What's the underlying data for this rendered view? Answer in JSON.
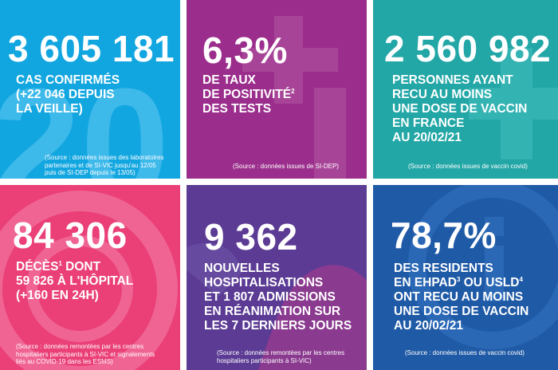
{
  "tiles": [
    {
      "number": "3 605 181",
      "lines": [
        "CAS CONFIRMÉS",
        "(+22 046 DEPUIS",
        "LA VEILLE)"
      ],
      "source": [
        "(Source : données issues des laboratoires",
        "partenaires et de SI-VIC jusqu'au 12/05",
        "puis de SI-DEP depuis le 13/05)"
      ],
      "color": "#12a6e0"
    },
    {
      "number": "6,3%",
      "lines": [
        "DE TAUX",
        "DE POSITIVITÉ",
        "DES TESTS"
      ],
      "sup": "2",
      "source": [
        "(Source : données issues de SI-DEP)"
      ],
      "color": "#9b2e8c"
    },
    {
      "number": "2 560 982",
      "lines": [
        "PERSONNES AYANT",
        "RECU AU MOINS",
        "UNE DOSE DE VACCIN",
        "EN FRANCE",
        "AU 20/02/21"
      ],
      "source": [
        "(Source : données issues de vaccin covid)"
      ],
      "color": "#22a6a6"
    },
    {
      "number": "84 306",
      "lines": [
        "DÉCÈS",
        " DONT",
        "59 826 À L'HÔPITAL",
        "(+160 EN 24H)"
      ],
      "sup": "1",
      "source": [
        "(Source : données remontées par les centres",
        "hospitaliers participants à SI-VIC et signalements",
        "liés au COVID-19 dans les ESMS)"
      ],
      "color": "#ea3f77"
    },
    {
      "number": "9 362",
      "lines": [
        "NOUVELLES",
        "HOSPITALISATIONS",
        "ET 1 807 ADMISSIONS",
        "EN RÉANIMATION SUR",
        "LES 7 DERNIERS JOURS"
      ],
      "source": [
        "(Source : données remontées par les centres",
        "hospitaliers participants à SI-VIC)"
      ],
      "color": "#5b3b94"
    },
    {
      "number": "78,7%",
      "lines": [
        "DES RESIDENTS",
        "EN EHPAD",
        " OU USLD",
        "ONT RECU AU MOINS",
        "UNE DOSE DE VACCIN",
        "AU 20/02/21"
      ],
      "sup3": "3",
      "sup4": "4",
      "source": [
        "(Source : données issues de vaccin covid)"
      ],
      "color": "#1f5aa6"
    }
  ]
}
